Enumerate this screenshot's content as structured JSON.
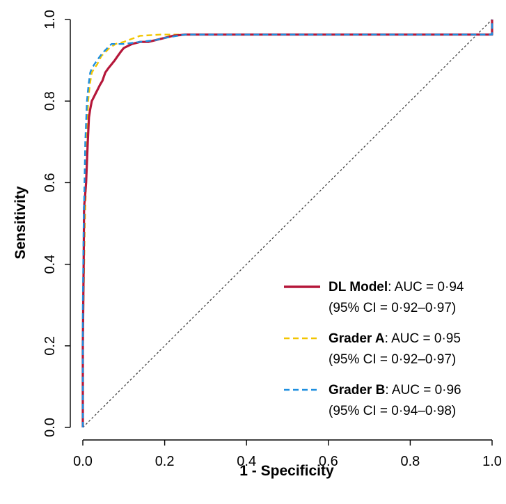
{
  "chart_data": {
    "type": "line",
    "title": "",
    "xlabel": "1 - Specificity",
    "ylabel": "Sensitivity",
    "xlim": [
      0,
      1
    ],
    "ylim": [
      0,
      1
    ],
    "xticks": [
      "0.0",
      "0.2",
      "0.4",
      "0.6",
      "0.8",
      "1.0"
    ],
    "yticks": [
      "0.0",
      "0.2",
      "0.4",
      "0.6",
      "0.8",
      "1.0"
    ],
    "grid": false,
    "legend_position": "bottom-right",
    "series": [
      {
        "name": "DL Model",
        "auc_text": ": AUC = 0·94",
        "ci_text": "(95% CI = 0·92–0·97)",
        "color": "#b5173a",
        "dash": "solid",
        "x": [
          0,
          0,
          0.002,
          0.003,
          0.005,
          0.008,
          0.01,
          0.012,
          0.015,
          0.018,
          0.022,
          0.027,
          0.032,
          0.037,
          0.042,
          0.048,
          0.055,
          0.062,
          0.07,
          0.078,
          0.085,
          0.092,
          0.1,
          0.11,
          0.12,
          0.14,
          0.16,
          0.18,
          0.2,
          0.22,
          0.25,
          0.3,
          0.5,
          0.7,
          0.9,
          1.0,
          1.0
        ],
        "y": [
          0,
          0.2,
          0.4,
          0.54,
          0.56,
          0.6,
          0.65,
          0.7,
          0.76,
          0.78,
          0.8,
          0.81,
          0.82,
          0.83,
          0.84,
          0.85,
          0.87,
          0.88,
          0.89,
          0.9,
          0.91,
          0.92,
          0.93,
          0.935,
          0.94,
          0.945,
          0.945,
          0.95,
          0.955,
          0.96,
          0.963,
          0.963,
          0.963,
          0.963,
          0.963,
          0.963,
          1.0
        ]
      },
      {
        "name": "Grader A",
        "auc_text": ": AUC = 0·95",
        "ci_text": "(95% CI = 0·92–0·97)",
        "color": "#f2c500",
        "dash": "dashed",
        "x": [
          0,
          0,
          0.005,
          0.008,
          0.01,
          0.013,
          0.017,
          0.022,
          0.028,
          0.035,
          0.045,
          0.055,
          0.065,
          0.08,
          0.1,
          0.14,
          0.19,
          0.25,
          0.5,
          0.8,
          1.0,
          1.0
        ],
        "y": [
          0,
          0.2,
          0.5,
          0.6,
          0.7,
          0.8,
          0.84,
          0.87,
          0.88,
          0.89,
          0.91,
          0.92,
          0.93,
          0.94,
          0.945,
          0.96,
          0.963,
          0.963,
          0.963,
          0.963,
          0.963,
          1.0
        ]
      },
      {
        "name": "Grader B",
        "auc_text": ": AUC = 0·96",
        "ci_text": "(95% CI = 0·94–0·98)",
        "color": "#1e8fe0",
        "dash": "dashed",
        "x": [
          0,
          0,
          0.002,
          0.004,
          0.006,
          0.01,
          0.014,
          0.018,
          0.022,
          0.028,
          0.035,
          0.042,
          0.05,
          0.06,
          0.07,
          0.1,
          0.14,
          0.18,
          0.2,
          0.25,
          0.5,
          0.8,
          1.0,
          1.0
        ],
        "y": [
          0,
          0.3,
          0.5,
          0.6,
          0.7,
          0.8,
          0.84,
          0.87,
          0.88,
          0.89,
          0.9,
          0.91,
          0.92,
          0.93,
          0.94,
          0.94,
          0.945,
          0.95,
          0.955,
          0.963,
          0.963,
          0.963,
          0.963,
          1.0
        ]
      }
    ],
    "reference_line": {
      "x": [
        0,
        1
      ],
      "y": [
        0,
        1
      ],
      "color": "#444444",
      "dash": "dotted"
    }
  }
}
